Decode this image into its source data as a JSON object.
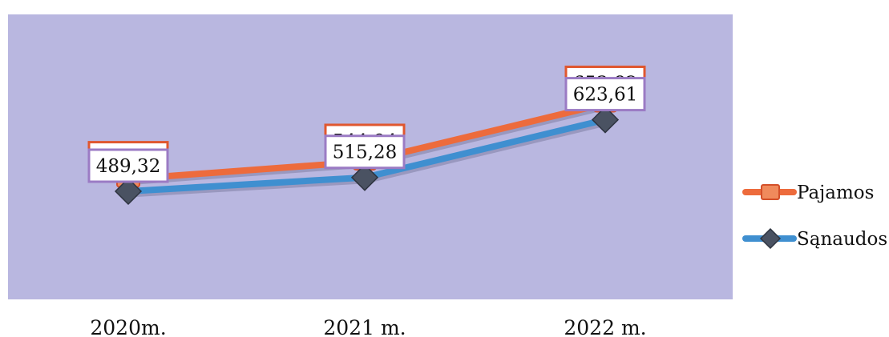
{
  "chart_data": {
    "type": "line",
    "categories": [
      "2020m.",
      "2021 m.",
      "2022 m."
    ],
    "series": [
      {
        "name": "Pajamos",
        "values": [
          512.45,
          544.94,
          653.82
        ],
        "labels": [
          "512,45",
          "544,94",
          "653,82"
        ],
        "color": "#ed6b3c",
        "label_border": "#e0572f",
        "marker": "square"
      },
      {
        "name": "Sąnaudos",
        "values": [
          489.32,
          515.28,
          623.61
        ],
        "labels": [
          "489,32",
          "515,28",
          "623,61"
        ],
        "color": "#3f8fd0",
        "label_border": "#9b7bc4",
        "marker": "diamond"
      }
    ],
    "plot_background": "#b9b7e0",
    "legend_position": "right",
    "grid": false
  }
}
